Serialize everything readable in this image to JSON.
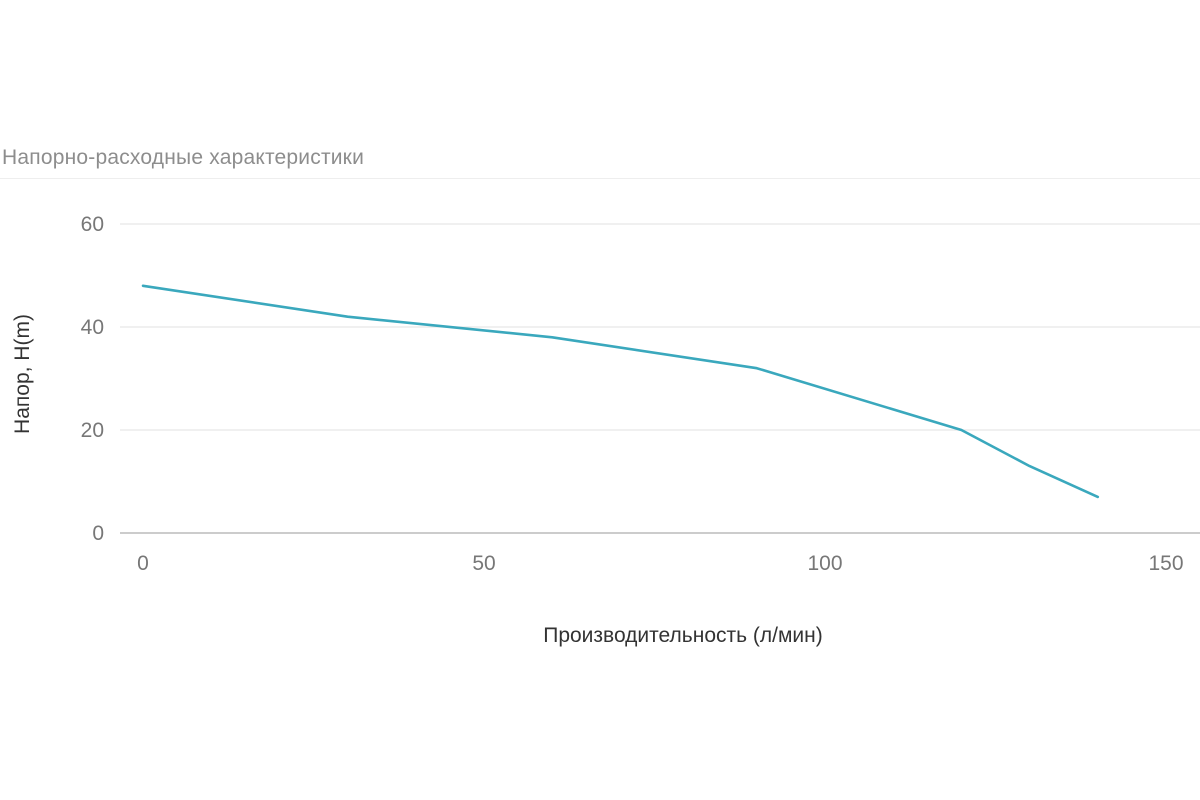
{
  "chart_data": {
    "type": "line",
    "title": "Напорно-расходные характеристики",
    "xlabel": "Производительность (л/мин)",
    "ylabel": "Напор, H(m)",
    "xlim": [
      -3,
      153
    ],
    "ylim": [
      0,
      60
    ],
    "x_ticks": [
      "0",
      "50",
      "100",
      "150"
    ],
    "y_ticks": [
      "0",
      "20",
      "40",
      "60"
    ],
    "grid": true,
    "legend": "none",
    "line_color": "#3aa8bd",
    "series": [
      {
        "x": [
          0,
          30,
          60,
          90,
          120,
          130,
          140
        ],
        "y": [
          48,
          42,
          38,
          32,
          20,
          13,
          7
        ]
      }
    ]
  }
}
